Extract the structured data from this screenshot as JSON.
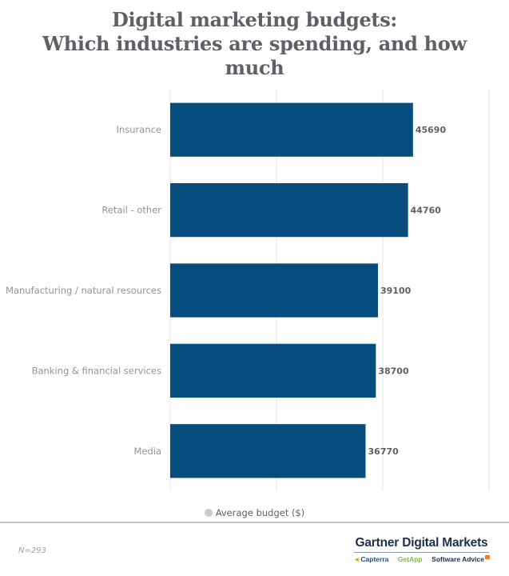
{
  "chart_data": {
    "type": "bar",
    "orientation": "horizontal",
    "title": "Digital marketing budgets: Which industries are spending, and how much",
    "title_lines": [
      "Digital marketing budgets:",
      "Which industries are spending, and how",
      "much"
    ],
    "categories": [
      "Insurance",
      "Retail - other",
      "Manufacturing / natural resources",
      "Banking & financial services",
      "Media"
    ],
    "series": [
      {
        "name": "Average budget ($)",
        "values": [
          45690,
          44760,
          39100,
          38700,
          36770
        ],
        "color": "#064d7e"
      }
    ],
    "data_labels": [
      "45690",
      "44760",
      "39100",
      "38700",
      "36770"
    ],
    "xlabel": "",
    "ylabel": "",
    "xlim": [
      0,
      60000
    ],
    "gridlines_at": [
      0,
      20000,
      40000,
      60000
    ],
    "grid": true,
    "axis_tick_labels_shown": false,
    "legend": {
      "entries": [
        "Average budget ($)"
      ],
      "placement": "bottom-center",
      "marker_color": "#c8cbcf"
    }
  },
  "footer": {
    "note": "N=293",
    "brand_title": "Gartner Digital Markets",
    "sub_brands": [
      "Capterra",
      "GetApp",
      "Software Advice"
    ]
  },
  "colors": {
    "bar": "#064d7e",
    "title": "#5f6066",
    "category_label": "#8c959f",
    "gridline": "#e6e6e6"
  }
}
